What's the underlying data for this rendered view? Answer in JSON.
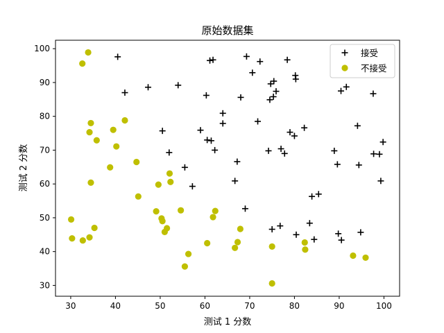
{
  "chart_data": {
    "type": "scatter",
    "title": "原始数据集",
    "xlabel": "测试 1 分数",
    "ylabel": "测试 2 分数",
    "xlim": [
      26.6,
      103.5
    ],
    "ylim": [
      26.8,
      102.5
    ],
    "xticks": [
      30,
      40,
      50,
      60,
      70,
      80,
      90,
      100
    ],
    "yticks": [
      30,
      40,
      50,
      60,
      70,
      80,
      90,
      100
    ],
    "grid": false,
    "legend_position": "top-right",
    "series": [
      {
        "name": "接受",
        "marker": "plus",
        "color": "#000000",
        "points": [
          [
            40.5,
            97.6
          ],
          [
            42.1,
            87.0
          ],
          [
            47.3,
            88.6
          ],
          [
            50.5,
            75.7
          ],
          [
            52.0,
            69.3
          ],
          [
            54.0,
            89.2
          ],
          [
            55.5,
            64.9
          ],
          [
            57.2,
            59.3
          ],
          [
            59.0,
            75.9
          ],
          [
            60.3,
            86.2
          ],
          [
            60.5,
            73.0
          ],
          [
            61.1,
            96.5
          ],
          [
            61.4,
            72.8
          ],
          [
            61.8,
            96.7
          ],
          [
            62.2,
            70.0
          ],
          [
            64.0,
            80.9
          ],
          [
            64.0,
            77.9
          ],
          [
            66.7,
            60.9
          ],
          [
            67.2,
            66.6
          ],
          [
            68.0,
            85.6
          ],
          [
            69.0,
            52.7
          ],
          [
            69.3,
            97.7
          ],
          [
            70.6,
            92.9
          ],
          [
            71.8,
            78.5
          ],
          [
            72.3,
            96.2
          ],
          [
            74.2,
            69.8
          ],
          [
            74.5,
            84.9
          ],
          [
            74.7,
            89.6
          ],
          [
            75.0,
            46.6
          ],
          [
            75.3,
            85.8
          ],
          [
            75.4,
            90.4
          ],
          [
            75.9,
            87.4
          ],
          [
            76.8,
            47.6
          ],
          [
            77.0,
            70.4
          ],
          [
            77.8,
            69.0
          ],
          [
            78.4,
            96.7
          ],
          [
            79.0,
            75.3
          ],
          [
            80.0,
            74.2
          ],
          [
            80.2,
            92.1
          ],
          [
            80.3,
            91.0
          ],
          [
            80.4,
            45.0
          ],
          [
            82.2,
            76.6
          ],
          [
            83.4,
            48.4
          ],
          [
            83.9,
            56.3
          ],
          [
            84.4,
            43.6
          ],
          [
            85.4,
            57.0
          ],
          [
            88.9,
            69.8
          ],
          [
            89.6,
            65.8
          ],
          [
            89.8,
            45.3
          ],
          [
            90.4,
            87.5
          ],
          [
            90.5,
            43.4
          ],
          [
            91.6,
            88.7
          ],
          [
            94.1,
            77.2
          ],
          [
            94.4,
            65.6
          ],
          [
            94.8,
            45.7
          ],
          [
            97.6,
            86.7
          ],
          [
            97.7,
            68.9
          ],
          [
            99.0,
            68.8
          ],
          [
            99.3,
            60.9
          ],
          [
            99.8,
            72.4
          ]
        ]
      },
      {
        "name": "不接受",
        "marker": "circle",
        "color": "#bfbf00",
        "points": [
          [
            30.1,
            49.5
          ],
          [
            30.3,
            43.9
          ],
          [
            32.6,
            95.6
          ],
          [
            32.7,
            43.3
          ],
          [
            33.9,
            98.9
          ],
          [
            34.2,
            44.2
          ],
          [
            34.2,
            75.3
          ],
          [
            34.5,
            78.0
          ],
          [
            34.5,
            60.4
          ],
          [
            35.3,
            47.0
          ],
          [
            35.8,
            72.9
          ],
          [
            38.8,
            64.9
          ],
          [
            39.5,
            76.0
          ],
          [
            40.2,
            71.1
          ],
          [
            42.1,
            78.8
          ],
          [
            44.7,
            66.5
          ],
          [
            45.1,
            56.3
          ],
          [
            49.1,
            51.9
          ],
          [
            49.6,
            59.8
          ],
          [
            50.3,
            49.8
          ],
          [
            50.5,
            49.0
          ],
          [
            51.0,
            45.8
          ],
          [
            51.5,
            46.9
          ],
          [
            52.1,
            63.1
          ],
          [
            52.3,
            60.6
          ],
          [
            54.6,
            52.2
          ],
          [
            55.5,
            35.6
          ],
          [
            56.3,
            39.3
          ],
          [
            60.5,
            42.5
          ],
          [
            61.8,
            50.2
          ],
          [
            62.3,
            52.0
          ],
          [
            66.7,
            41.1
          ],
          [
            67.3,
            42.8
          ],
          [
            67.9,
            46.7
          ],
          [
            75.0,
            30.6
          ],
          [
            75.0,
            41.5
          ],
          [
            82.3,
            42.7
          ],
          [
            82.4,
            40.6
          ],
          [
            93.1,
            38.8
          ],
          [
            95.9,
            38.2
          ]
        ]
      }
    ]
  }
}
